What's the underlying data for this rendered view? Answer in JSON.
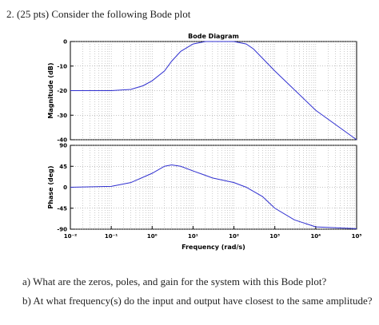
{
  "question": "2. (25 pts) Consider the following Bode plot",
  "chart_data": [
    {
      "type": "line",
      "title": "Bode Diagram",
      "y_label": "Magnitude (dB)",
      "x": [
        0.01,
        0.1,
        0.3,
        0.6,
        1,
        2,
        3,
        5,
        10,
        20,
        50,
        100,
        200,
        300,
        1000,
        10000,
        100000
      ],
      "series": [
        {
          "color": "#3030d0",
          "values": [
            -20,
            -20,
            -19.5,
            -18,
            -16,
            -12,
            -8,
            -4,
            -1,
            0,
            0,
            0,
            -1,
            -3,
            -12,
            -28,
            -40
          ]
        }
      ],
      "xlim": [
        0.01,
        100000
      ],
      "ylim": [
        -40,
        0
      ],
      "yticks": [
        0,
        -10,
        -20,
        -30,
        -40
      ],
      "log_x": true,
      "grid": true
    },
    {
      "type": "line",
      "y_label": "Phase (deg)",
      "x_label": "Frequency (rad/s)",
      "x": [
        0.01,
        0.1,
        0.3,
        1,
        2,
        3,
        5,
        10,
        30,
        100,
        200,
        500,
        1000,
        3000,
        10000,
        100000
      ],
      "series": [
        {
          "color": "#3030d0",
          "values": [
            0,
            2,
            10,
            30,
            45,
            48,
            45,
            35,
            20,
            10,
            0,
            -20,
            -45,
            -70,
            -85,
            -89
          ]
        }
      ],
      "xlim": [
        0.01,
        100000
      ],
      "ylim": [
        -90,
        90
      ],
      "yticks": [
        90,
        45,
        0,
        -45,
        -90
      ],
      "xticks": [
        {
          "value": 0.01,
          "label": "10⁻²"
        },
        {
          "value": 0.1,
          "label": "10⁻¹"
        },
        {
          "value": 1,
          "label": "10⁰"
        },
        {
          "value": 10,
          "label": "10¹"
        },
        {
          "value": 100,
          "label": "10²"
        },
        {
          "value": 1000,
          "label": "10³"
        },
        {
          "value": 10000,
          "label": "10⁴"
        },
        {
          "value": 100000,
          "label": "10⁵"
        }
      ],
      "log_x": true,
      "grid": true
    }
  ],
  "parts": [
    "a) What are the zeros, poles, and gain for the system with this Bode plot?",
    "b) At what frequency(s) do the input and output have closest to the same amplitude?"
  ]
}
